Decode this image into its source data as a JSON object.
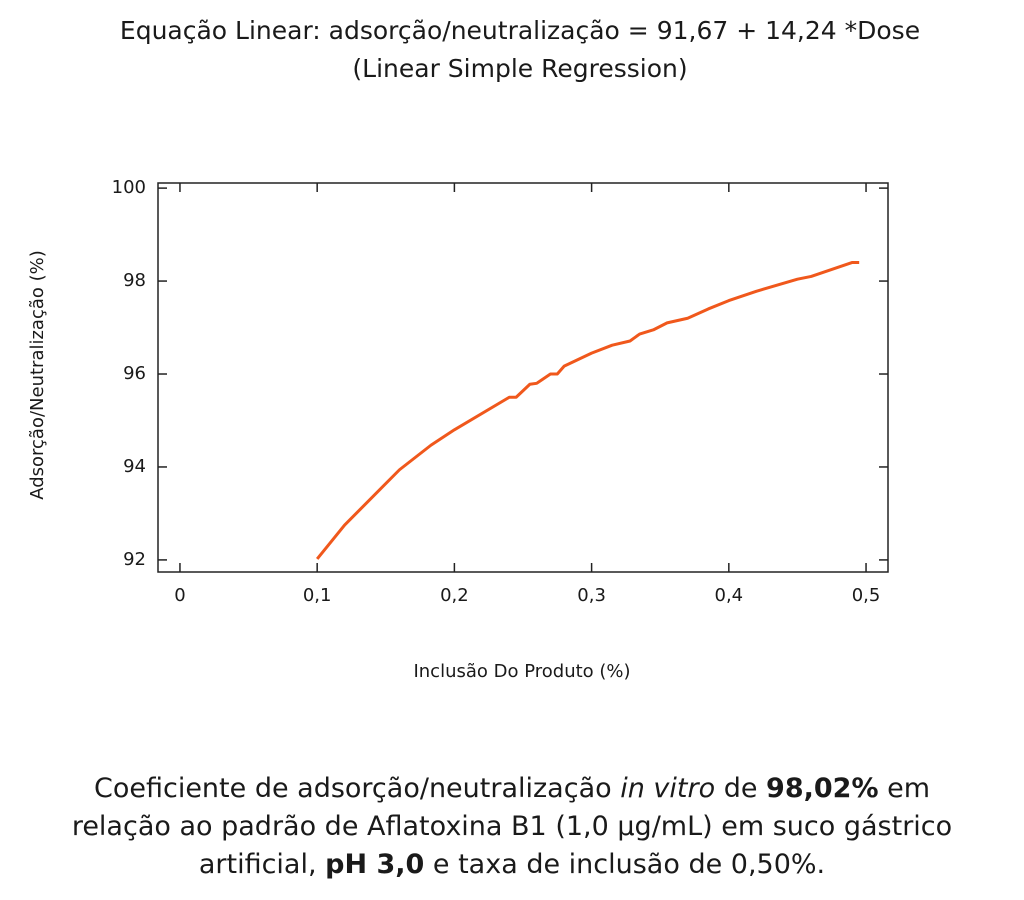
{
  "chart_data": {
    "type": "line",
    "title": "Equação Linear: adsorção/neutralização = 91,67 + 14,24 *Dose",
    "subtitle": "(Linear Simple Regression)",
    "x_label": "Inclusão Do Produto (%)",
    "y_label": "Adsorção/Neutralização (%)",
    "series": [
      {
        "color": "#f0581c",
        "x": [
          0.1,
          0.12,
          0.16,
          0.183,
          0.2,
          0.24,
          0.245,
          0.255,
          0.26,
          0.27,
          0.275,
          0.28,
          0.3,
          0.315,
          0.328,
          0.335,
          0.345,
          0.355,
          0.37,
          0.385,
          0.4,
          0.42,
          0.45,
          0.46,
          0.49,
          0.495
        ],
        "values": [
          92.02,
          92.75,
          93.94,
          94.47,
          94.8,
          95.5,
          95.5,
          95.78,
          95.8,
          96.0,
          96.0,
          96.17,
          96.45,
          96.62,
          96.71,
          96.86,
          96.95,
          97.1,
          97.2,
          97.4,
          97.58,
          97.78,
          98.04,
          98.1,
          98.4,
          98.4
        ]
      }
    ],
    "xlim": [
      -0.016,
      0.516
    ],
    "ylim": [
      91.74,
      100.11
    ],
    "xticks": [
      0,
      {
        "value": 0.1,
        "label": "0,1"
      },
      {
        "value": 0.2,
        "label": "0,2"
      },
      {
        "value": 0.3,
        "label": "0,3"
      },
      {
        "value": 0.4,
        "label": "0,4"
      },
      {
        "value": 0.5,
        "label": "0,5"
      }
    ],
    "yticks": [
      92,
      94,
      96,
      98,
      100
    ],
    "grid": false
  },
  "caption": [
    [
      {
        "text": "Coeficiente de adsorção/neutralização "
      },
      {
        "text": "in vitro",
        "style": "italic"
      },
      {
        "text": " de "
      },
      {
        "text": "98,02%",
        "style": "bold"
      },
      {
        "text": " em"
      }
    ],
    [
      {
        "text": "relação ao padrão de Aflatoxina B1 (1,0 µg/mL) em suco gástrico"
      }
    ],
    [
      {
        "text": "artificial, "
      },
      {
        "text": "pH 3,0",
        "style": "bold"
      },
      {
        "text": " e taxa de inclusão de 0,50%."
      }
    ]
  ]
}
